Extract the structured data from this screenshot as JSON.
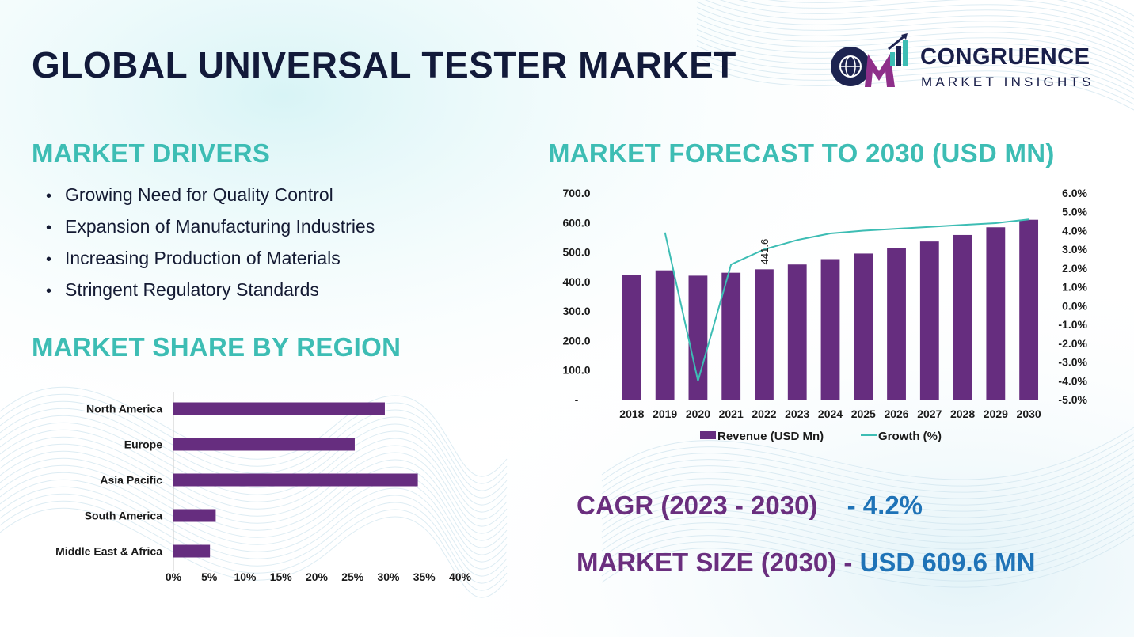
{
  "header": {
    "title": "GLOBAL UNIVERSAL TESTER MARKET"
  },
  "logo": {
    "line1": "CONGRUENCE",
    "line2": "MARKET INSIGHTS"
  },
  "drivers": {
    "title": "MARKET DRIVERS",
    "items": [
      "Growing Need for Quality Control",
      "Expansion of Manufacturing Industries",
      "Increasing Production of Materials",
      "Stringent Regulatory Standards"
    ]
  },
  "region": {
    "title": "MARKET SHARE BY REGION"
  },
  "forecast": {
    "title": "MARKET FORECAST TO 2030 (USD MN)"
  },
  "kpis": {
    "cagr_label": "CAGR (2023 - 2030)",
    "cagr_value": "- 4.2%",
    "size_label": "MARKET SIZE (2030) -",
    "size_value": "USD  609.6 MN"
  },
  "colors": {
    "teal": "#3dbdb4",
    "purple": "#662d7f",
    "navy": "#121a3a",
    "blue": "#1f73b7",
    "growth_line": "#3dbdb4"
  },
  "chart_data": [
    {
      "type": "bar",
      "orientation": "horizontal",
      "categories": [
        "North America",
        "Europe",
        "Asia Pacific",
        "South America",
        "Middle East & Africa"
      ],
      "values": [
        29.5,
        25.3,
        34.1,
        5.9,
        5.1
      ],
      "xlim": [
        0,
        40
      ],
      "x_ticks": [
        "0%",
        "5%",
        "10%",
        "15%",
        "20%",
        "25%",
        "30%",
        "35%",
        "40%"
      ],
      "grid": false,
      "color": "#662d7f"
    },
    {
      "type": "bar",
      "categories": [
        "2018",
        "2019",
        "2020",
        "2021",
        "2022",
        "2023",
        "2024",
        "2025",
        "2026",
        "2027",
        "2028",
        "2029",
        "2030"
      ],
      "series": [
        {
          "name": "Revenue (USD Mn)",
          "type": "bar",
          "axis": "left",
          "color": "#662d7f",
          "values": [
            422,
            438,
            420,
            430,
            441.6,
            458,
            476,
            495,
            514,
            536,
            558,
            584,
            609.6
          ]
        },
        {
          "name": "Growth (%)",
          "type": "line",
          "axis": "right",
          "color": "#3dbdb4",
          "values": [
            null,
            3.9,
            -4.0,
            2.2,
            3.0,
            3.5,
            3.85,
            4.0,
            4.1,
            4.2,
            4.3,
            4.4,
            4.6
          ]
        }
      ],
      "data_labels": [
        {
          "category": "2022",
          "text": "441.6"
        }
      ],
      "ylim_left": [
        0,
        700
      ],
      "y_ticks_left": [
        "-",
        "100.0",
        "200.0",
        "300.0",
        "400.0",
        "500.0",
        "600.0",
        "700.0"
      ],
      "ylim_right": [
        -5,
        6
      ],
      "y_ticks_right": [
        "-5.0%",
        "-4.0%",
        "-3.0%",
        "-2.0%",
        "-1.0%",
        "0.0%",
        "1.0%",
        "2.0%",
        "3.0%",
        "4.0%",
        "5.0%",
        "6.0%"
      ],
      "legend": "bottom",
      "grid": false
    }
  ]
}
